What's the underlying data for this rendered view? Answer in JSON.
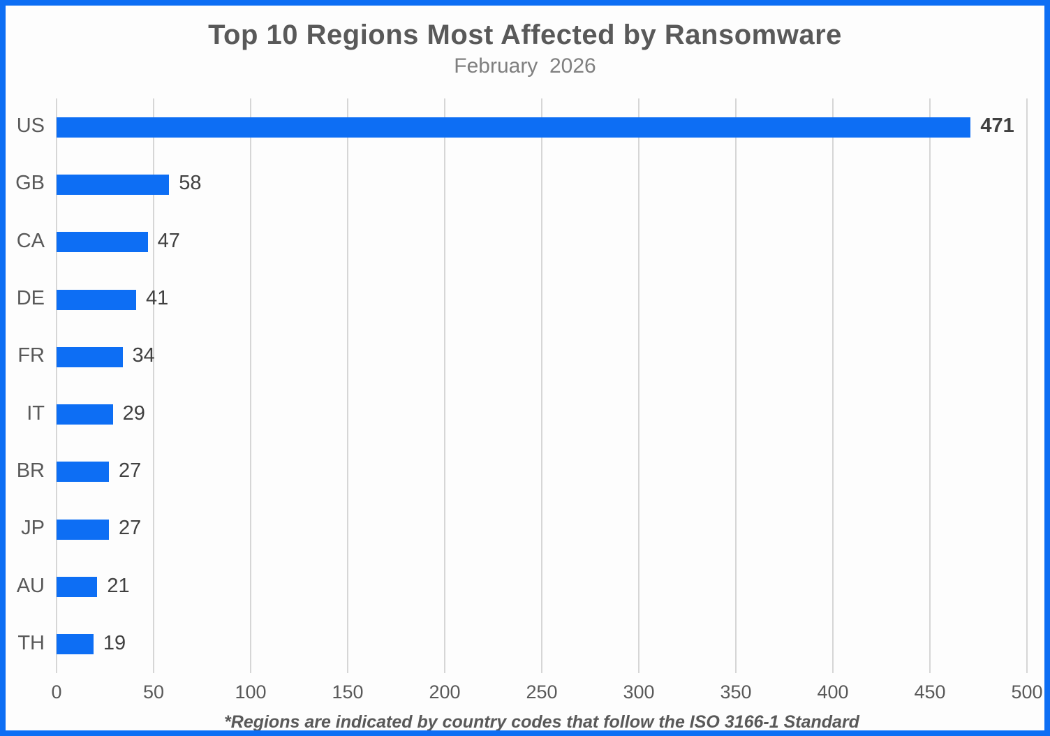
{
  "frame": {
    "border_color": "#0d6ef4",
    "background": "#fdfdfd"
  },
  "chart_data": {
    "type": "bar",
    "orientation": "horizontal",
    "title": "Top 10 Regions Most Affected by Ransomware",
    "subtitle": "February  2026",
    "categories": [
      "US",
      "GB",
      "CA",
      "DE",
      "FR",
      "IT",
      "BR",
      "JP",
      "AU",
      "TH"
    ],
    "values": [
      471,
      58,
      47,
      41,
      34,
      29,
      27,
      27,
      21,
      19
    ],
    "value_labels_shown": true,
    "emphasized_value_index": 0,
    "xlim": [
      0,
      500
    ],
    "x_ticks": [
      0,
      50,
      100,
      150,
      200,
      250,
      300,
      350,
      400,
      450,
      500
    ],
    "grid": true,
    "legend": "none",
    "bar_color": "#0d6ef4",
    "gridline_color": "#d6d6d6",
    "footnote": "*Regions are indicated by country codes that follow the ISO 3166-1 Standard"
  }
}
